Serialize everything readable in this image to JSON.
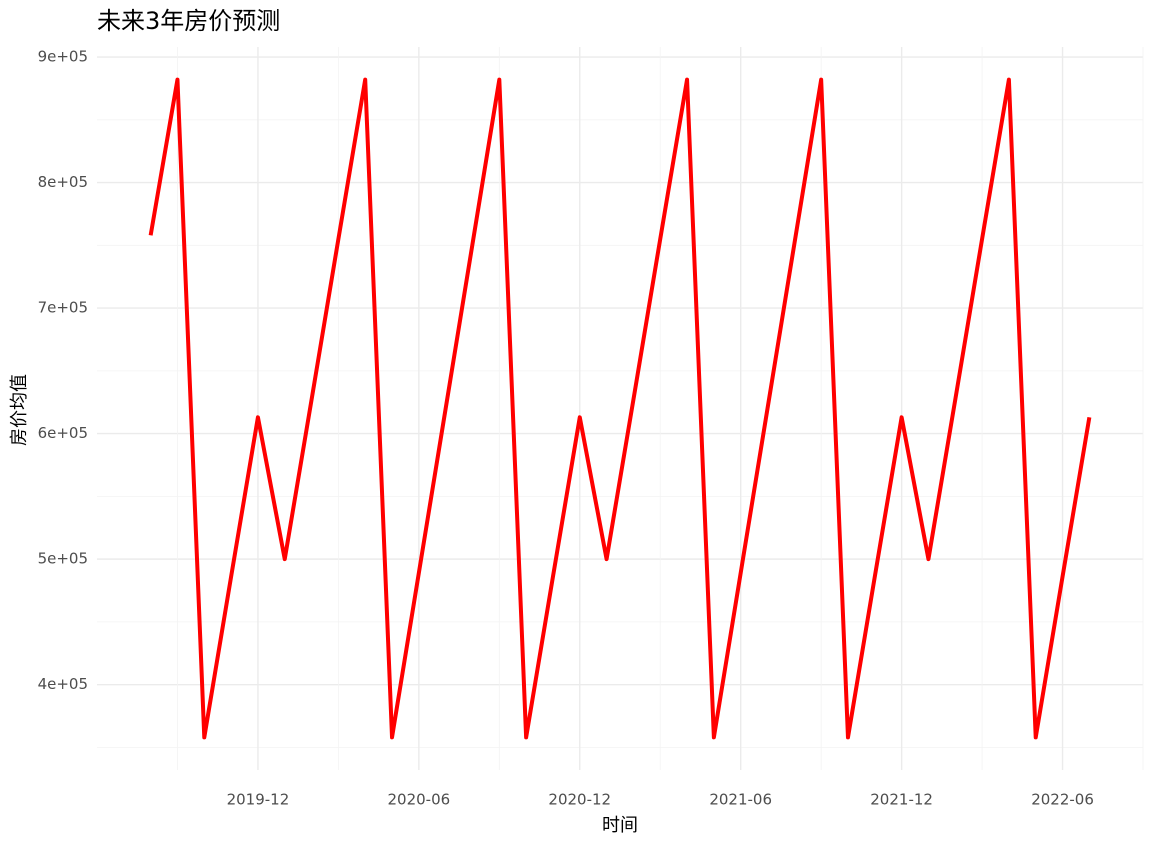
{
  "chart_data": {
    "type": "line",
    "title": "未来3年房价预测",
    "x_label": "时间",
    "y_label": "房价均值",
    "x": [
      "2019-08",
      "2019-09",
      "2019-10",
      "2019-11",
      "2019-12",
      "2020-01",
      "2020-02",
      "2020-03",
      "2020-04",
      "2020-05",
      "2020-06",
      "2020-07",
      "2020-08",
      "2020-09",
      "2020-10",
      "2020-11",
      "2020-12",
      "2021-01",
      "2021-02",
      "2021-03",
      "2021-04",
      "2021-05",
      "2021-06",
      "2021-07",
      "2021-08",
      "2021-09",
      "2021-10",
      "2021-11",
      "2021-12",
      "2022-01",
      "2022-02",
      "2022-03",
      "2022-04",
      "2022-05",
      "2022-06",
      "2022-07"
    ],
    "series": [
      {
        "name": "房价均值",
        "color": "#ff0000",
        "values": [
          758000,
          882000,
          358000,
          486000,
          613000,
          500000,
          627000,
          755000,
          882000,
          358000,
          489000,
          620000,
          751000,
          882000,
          358000,
          486000,
          613000,
          500000,
          627000,
          755000,
          882000,
          358000,
          489000,
          620000,
          751000,
          882000,
          358000,
          486000,
          613000,
          500000,
          627000,
          755000,
          882000,
          358000,
          486000,
          613000
        ]
      }
    ],
    "xlim": [
      "2019-06",
      "2022-09"
    ],
    "xticks": [
      "2019-12",
      "2020-06",
      "2020-12",
      "2021-06",
      "2021-12",
      "2022-06"
    ],
    "ylim": [
      332000,
      908000
    ],
    "yticks": [
      {
        "value": 400000,
        "label": "4e+05"
      },
      {
        "value": 500000,
        "label": "5e+05"
      },
      {
        "value": 600000,
        "label": "6e+05"
      },
      {
        "value": 700000,
        "label": "7e+05"
      },
      {
        "value": 800000,
        "label": "8e+05"
      },
      {
        "value": 900000,
        "label": "9e+05"
      }
    ],
    "grid": true
  }
}
